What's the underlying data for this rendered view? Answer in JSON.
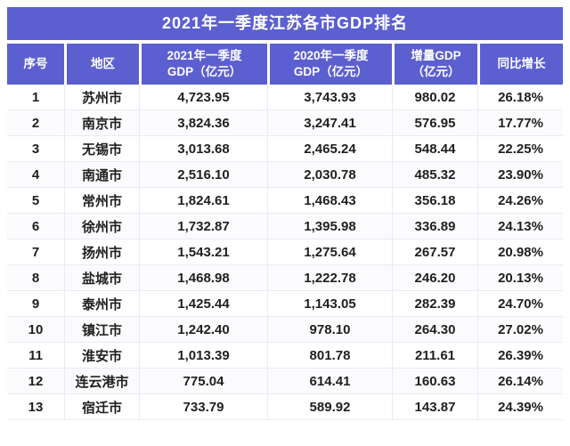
{
  "colors": {
    "accent": "#5b5fd0",
    "header_text": "#ffffff",
    "body_text": "#1f1f1f",
    "grid_line": "#e9e9f2"
  },
  "chart_data": {
    "type": "table",
    "title": "2021年一季度江苏各市GDP排名",
    "columns": [
      "序号",
      "地区",
      "2021年一季度\nGDP（亿元）",
      "2020年一季度\nGDP（亿元）",
      "增量GDP\n（亿元）",
      "同比增长"
    ],
    "rows": [
      {
        "rank": "1",
        "city": "苏州市",
        "gdp_2021": "4,723.95",
        "gdp_2020": "3,743.93",
        "delta": "980.02",
        "growth": "26.18%"
      },
      {
        "rank": "2",
        "city": "南京市",
        "gdp_2021": "3,824.36",
        "gdp_2020": "3,247.41",
        "delta": "576.95",
        "growth": "17.77%"
      },
      {
        "rank": "3",
        "city": "无锡市",
        "gdp_2021": "3,013.68",
        "gdp_2020": "2,465.24",
        "delta": "548.44",
        "growth": "22.25%"
      },
      {
        "rank": "4",
        "city": "南通市",
        "gdp_2021": "2,516.10",
        "gdp_2020": "2,030.78",
        "delta": "485.32",
        "growth": "23.90%"
      },
      {
        "rank": "5",
        "city": "常州市",
        "gdp_2021": "1,824.61",
        "gdp_2020": "1,468.43",
        "delta": "356.18",
        "growth": "24.26%"
      },
      {
        "rank": "6",
        "city": "徐州市",
        "gdp_2021": "1,732.87",
        "gdp_2020": "1,395.98",
        "delta": "336.89",
        "growth": "24.13%"
      },
      {
        "rank": "7",
        "city": "扬州市",
        "gdp_2021": "1,543.21",
        "gdp_2020": "1,275.64",
        "delta": "267.57",
        "growth": "20.98%"
      },
      {
        "rank": "8",
        "city": "盐城市",
        "gdp_2021": "1,468.98",
        "gdp_2020": "1,222.78",
        "delta": "246.20",
        "growth": "20.13%"
      },
      {
        "rank": "9",
        "city": "泰州市",
        "gdp_2021": "1,425.44",
        "gdp_2020": "1,143.05",
        "delta": "282.39",
        "growth": "24.70%"
      },
      {
        "rank": "10",
        "city": "镇江市",
        "gdp_2021": "1,242.40",
        "gdp_2020": "978.10",
        "delta": "264.30",
        "growth": "27.02%"
      },
      {
        "rank": "11",
        "city": "淮安市",
        "gdp_2021": "1,013.39",
        "gdp_2020": "801.78",
        "delta": "211.61",
        "growth": "26.39%"
      },
      {
        "rank": "12",
        "city": "连云港市",
        "gdp_2021": "775.04",
        "gdp_2020": "614.41",
        "delta": "160.63",
        "growth": "26.14%"
      },
      {
        "rank": "13",
        "city": "宿迁市",
        "gdp_2021": "733.79",
        "gdp_2020": "589.92",
        "delta": "143.87",
        "growth": "24.39%"
      }
    ]
  }
}
